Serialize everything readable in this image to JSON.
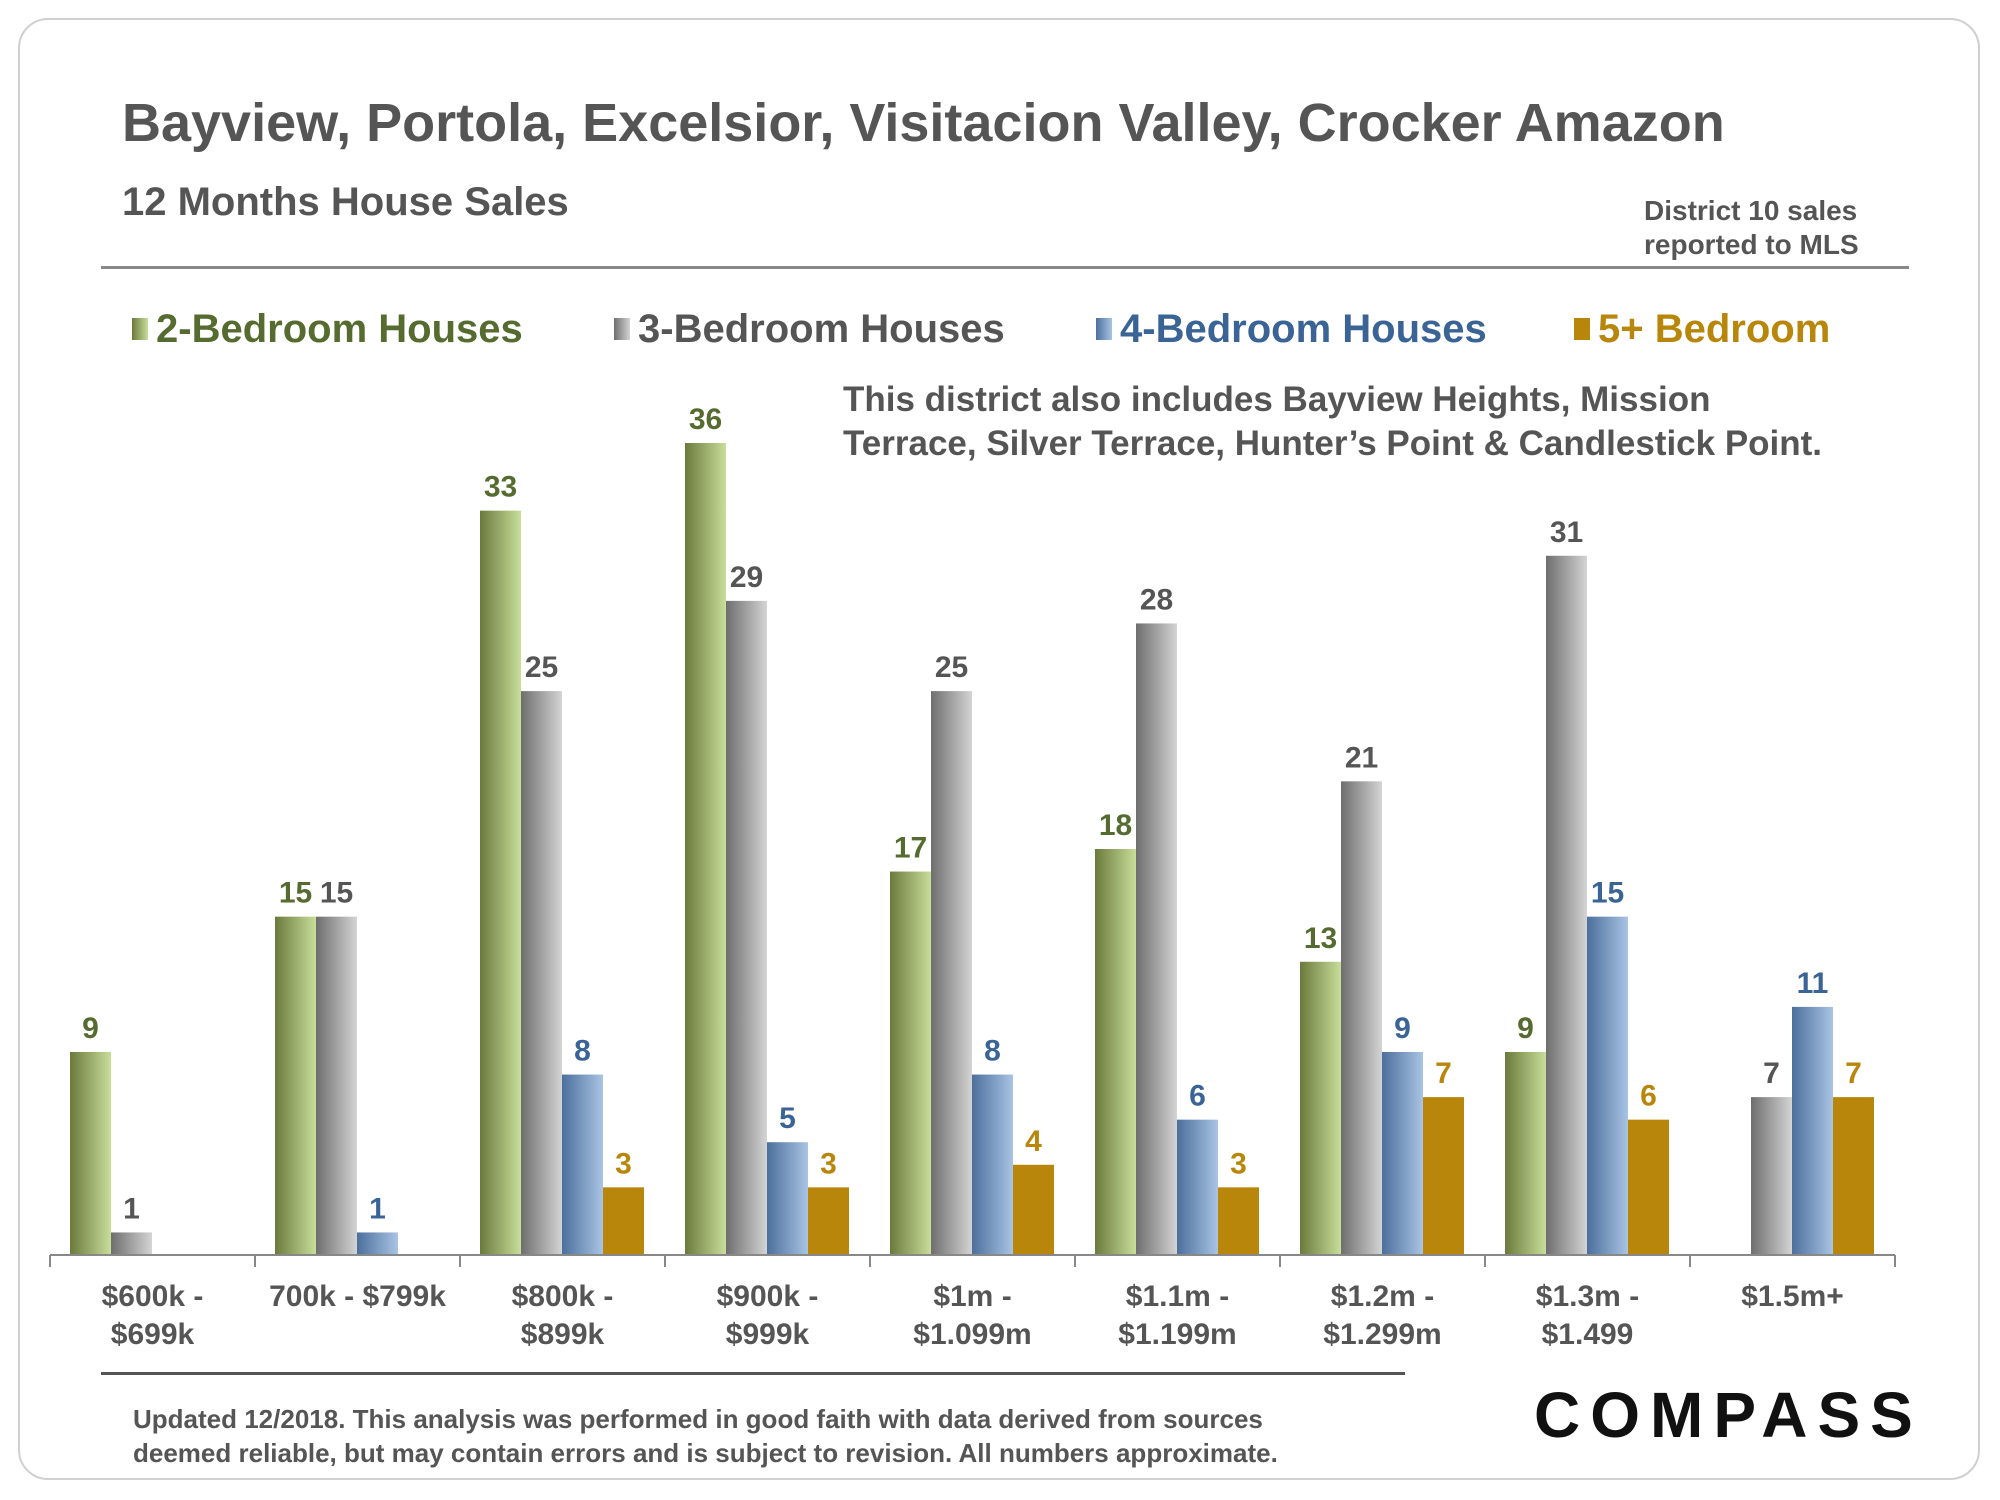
{
  "header": {
    "title": "Bayview, Portola, Excelsior, Visitacion Valley, Crocker Amazon",
    "subtitle": "12 Months House Sales",
    "source_line1": "District 10 sales",
    "source_line2": "reported to MLS"
  },
  "note": {
    "line1": "This district also includes Bayview Heights, Mission",
    "line2": "Terrace, Silver Terrace, Hunter’s Point & Candlestick Point."
  },
  "legend": [
    {
      "label": "2-Bedroom Houses",
      "color": "#556b2f"
    },
    {
      "label": "3-Bedroom Houses",
      "color": "#555555"
    },
    {
      "label": "4-Bedroom Houses",
      "color": "#3a6496"
    },
    {
      "label": "5+ Bedroom",
      "color": "#b8860b"
    }
  ],
  "chart_data": {
    "type": "bar",
    "title": "12 Months House Sales",
    "xlabel": "",
    "ylabel": "",
    "ylim": [
      0,
      36
    ],
    "categories": [
      [
        "$600k -",
        "$699k"
      ],
      [
        "700k - $799k"
      ],
      [
        "$800k -",
        "$899k"
      ],
      [
        "$900k -",
        "$999k"
      ],
      [
        "$1m -",
        "$1.099m"
      ],
      [
        "$1.1m -",
        "$1.199m"
      ],
      [
        "$1.2m -",
        "$1.299m"
      ],
      [
        "$1.3m -",
        "$1.499"
      ],
      [
        "$1.5m+"
      ]
    ],
    "series": [
      {
        "name": "2-Bedroom Houses",
        "values": [
          9,
          15,
          33,
          36,
          17,
          18,
          13,
          9,
          null
        ],
        "colors": [
          "#6b7a3c",
          "#c9de9a"
        ],
        "label_color": "#556b2f"
      },
      {
        "name": "3-Bedroom Houses",
        "values": [
          1,
          15,
          25,
          29,
          25,
          28,
          21,
          31,
          7
        ],
        "colors": [
          "#6e6e6e",
          "#d4d4d4"
        ],
        "label_color": "#555555"
      },
      {
        "name": "4-Bedroom Houses",
        "values": [
          null,
          1,
          8,
          5,
          8,
          6,
          9,
          15,
          11
        ],
        "colors": [
          "#4c6f9c",
          "#a9c4e4"
        ],
        "label_color": "#3a6496"
      },
      {
        "name": "5+ Bedroom",
        "values": [
          null,
          null,
          3,
          3,
          4,
          3,
          7,
          6,
          7
        ],
        "colors": [
          "#b8860b",
          "#b8860b"
        ],
        "label_color": "#b8860b"
      }
    ]
  },
  "footer": {
    "line1": "Updated 12/2018. This analysis was performed in good faith with data derived from sources",
    "line2": "deemed reliable, but may contain errors and is subject to revision. All numbers approximate."
  },
  "logo": "COMPASS"
}
